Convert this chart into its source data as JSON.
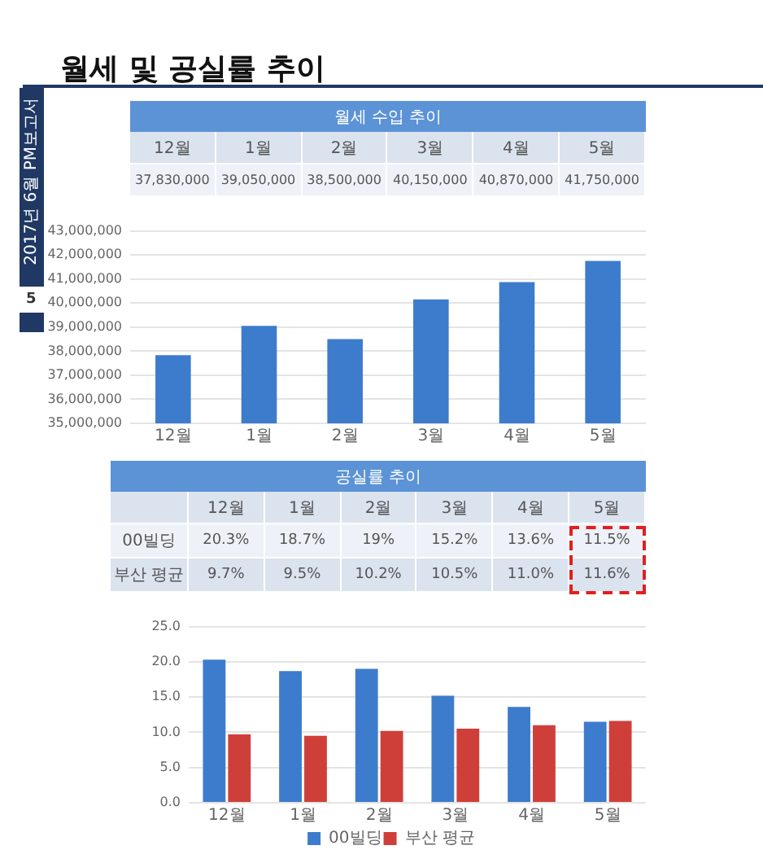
{
  "chart_data": [
    {
      "type": "bar",
      "title": "월세 및 공실률 추이",
      "subtitle": "월세 수입 추이",
      "categories": [
        "12월",
        "1월",
        "2월",
        "3월",
        "4월",
        "5월"
      ],
      "series": [
        {
          "color": "#3d7ccc",
          "values": [
            37830000,
            39050000,
            38500000,
            40150000,
            40870000,
            41750000
          ],
          "value_labels": [
            "37,830,000",
            "39,050,000",
            "38,500,000",
            "40,150,000",
            "40,870,000",
            "41,750,000"
          ]
        }
      ],
      "ylim": [
        35000000,
        43000000
      ],
      "yticks": [
        {
          "value": 35000000,
          "label": "35,000,000"
        },
        {
          "value": 36000000,
          "label": "36,000,000"
        },
        {
          "value": 37000000,
          "label": "37,000,000"
        },
        {
          "value": 38000000,
          "label": "38,000,000"
        },
        {
          "value": 39000000,
          "label": "39,000,000"
        },
        {
          "value": 40000000,
          "label": "40,000,000"
        },
        {
          "value": 41000000,
          "label": "41,000,000"
        },
        {
          "value": 42000000,
          "label": "42,000,000"
        },
        {
          "value": 43000000,
          "label": "43,000,000"
        }
      ],
      "grid": "y",
      "annotations": [
        "2017년 6월 PM보고서",
        "5"
      ]
    },
    {
      "type": "bar",
      "title": "공실률 추이",
      "categories": [
        "12월",
        "1월",
        "2월",
        "3월",
        "4월",
        "5월"
      ],
      "series": [
        {
          "name": "00빌딩",
          "color": "#3d7ccc",
          "values": [
            20.3,
            18.7,
            19,
            15.2,
            13.6,
            11.5
          ],
          "value_labels": [
            "20.3%",
            "18.7%",
            "19%",
            "15.2%",
            "13.6%",
            "11.5%"
          ]
        },
        {
          "name": "부산 평균",
          "color": "#cf3f3a",
          "values": [
            9.7,
            9.5,
            10.2,
            10.5,
            11.0,
            11.6
          ],
          "value_labels": [
            "9.7%",
            "9.5%",
            "10.2%",
            "10.5%",
            "11.0%",
            "11.6%"
          ]
        }
      ],
      "ylim": [
        0,
        25
      ],
      "yticks": [
        {
          "value": 0,
          "label": "0.0"
        },
        {
          "value": 5,
          "label": "5.0"
        },
        {
          "value": 10,
          "label": "10.0"
        },
        {
          "value": 15,
          "label": "15.0"
        },
        {
          "value": 20,
          "label": "20.0"
        },
        {
          "value": 25,
          "label": "25.0"
        }
      ],
      "grid": "y",
      "legend": "bottom"
    }
  ]
}
